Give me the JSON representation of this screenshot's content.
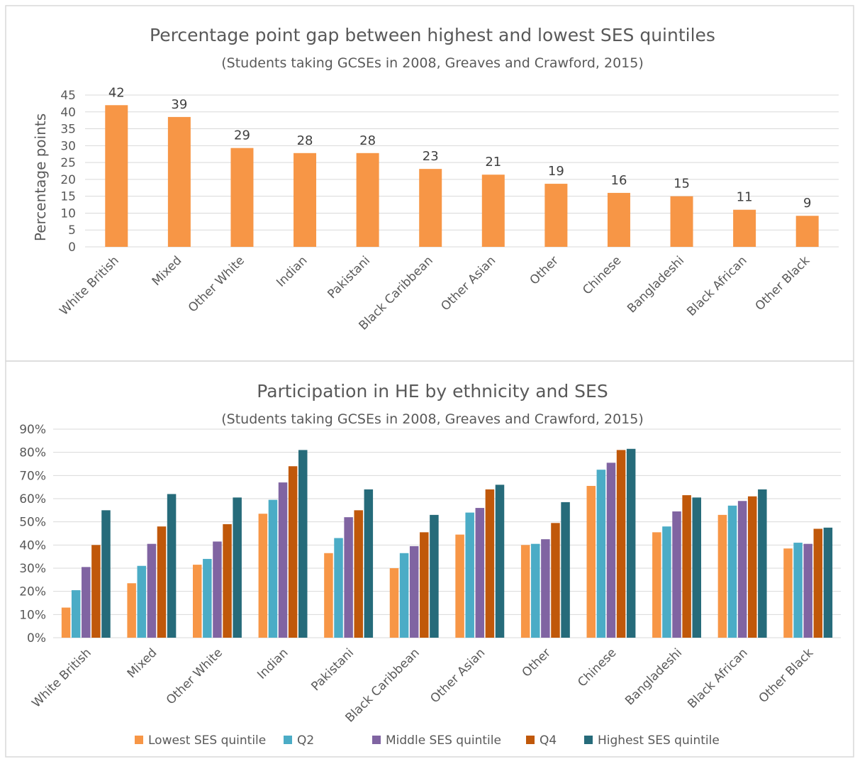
{
  "chart_data": [
    {
      "type": "bar",
      "title": "Percentage point gap between highest and lowest SES quintiles",
      "subtitle": "(Students taking GCSEs in 2008, Greaves and Crawford, 2015)",
      "ylabel": "Percentage points",
      "xlabel": "",
      "ylim": [
        0,
        45
      ],
      "yticks": [
        0,
        5,
        10,
        15,
        20,
        25,
        30,
        35,
        40,
        45
      ],
      "grid": true,
      "color": "#F79646",
      "categories": [
        "White British",
        "Mixed",
        "Other  White",
        "Indian",
        "Pakistani",
        "Black Caribbean",
        "Other Asian",
        "Other",
        "Chinese",
        "Bangladeshi",
        "Black African",
        "Other Black"
      ],
      "values": [
        42,
        38.5,
        29.3,
        27.8,
        27.8,
        23.1,
        21.4,
        18.7,
        16,
        15,
        11,
        9.2
      ],
      "data_labels": [
        "42",
        "39",
        "29",
        "28",
        "28",
        "23",
        "21",
        "19",
        "16",
        "15",
        "11",
        "9"
      ]
    },
    {
      "type": "bar",
      "title": "Participation in HE by ethnicity and SES",
      "subtitle": "(Students taking GCSEs in 2008, Greaves and Crawford, 2015)",
      "xlabel": "",
      "ylabel": "",
      "ylim": [
        0,
        90
      ],
      "yticks": [
        "0%",
        "10%",
        "20%",
        "30%",
        "40%",
        "50%",
        "60%",
        "70%",
        "80%",
        "90%"
      ],
      "grid": true,
      "legend_position": "bottom",
      "categories": [
        "White British",
        "Mixed",
        "Other  White",
        "Indian",
        "Pakistani",
        "Black Caribbean",
        "Other Asian",
        "Other",
        "Chinese",
        "Bangladeshi",
        "Black African",
        "Other Black"
      ],
      "series": [
        {
          "name": "Lowest SES quintile",
          "color": "#F79646",
          "values": [
            13,
            23.5,
            31.5,
            53.5,
            36.5,
            30,
            44.5,
            40,
            65.5,
            45.5,
            53,
            38.5
          ]
        },
        {
          "name": "Q2",
          "color": "#4BACC6",
          "values": [
            20.5,
            31,
            34,
            59.5,
            43,
            36.5,
            54,
            40.5,
            72.5,
            48,
            57,
            41
          ]
        },
        {
          "name": "Middle SES quintile",
          "color": "#8064A2",
          "values": [
            30.5,
            40.5,
            41.5,
            67,
            52,
            39.5,
            56,
            42.5,
            75.5,
            54.5,
            59,
            40.5
          ]
        },
        {
          "name": "Q4",
          "color": "#C0580A",
          "values": [
            40,
            48,
            49,
            74,
            55,
            45.5,
            64,
            49.5,
            81,
            61.5,
            61,
            47
          ]
        },
        {
          "name": "Highest SES quintile",
          "color": "#266B7A",
          "values": [
            55,
            62,
            60.5,
            81,
            64,
            53,
            66,
            58.5,
            81.5,
            60.5,
            64,
            47.5
          ]
        }
      ]
    }
  ]
}
